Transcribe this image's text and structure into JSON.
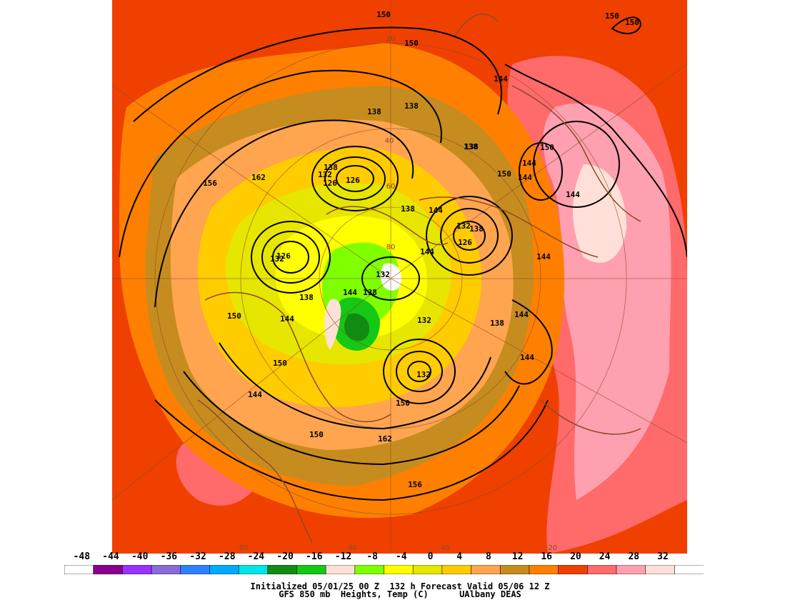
{
  "footer": {
    "line1": "Initialized 05/01/25 00 Z  132 h Forecast Valid 05/06 12 Z",
    "line2": "GFS 850 mb  Heights, Temp (C)      UAlbany DEAS"
  },
  "colorbar": {
    "tick_labels": [
      "-48",
      "-44",
      "-40",
      "-36",
      "-32",
      "-28",
      "-24",
      "-20",
      "-16",
      "-12",
      "-8",
      "-4",
      "0",
      "4",
      "8",
      "12",
      "16",
      "20",
      "24",
      "28",
      "32"
    ],
    "colors": [
      "#ffffff",
      "#8b008b",
      "#9932ff",
      "#8a6bd8",
      "#2f80ff",
      "#00aaff",
      "#00e5e5",
      "#138b13",
      "#14c814",
      "#ffe0d6",
      "#80ff00",
      "#ffff00",
      "#e6e600",
      "#ffcc00",
      "#ffa54f",
      "#c78c1f",
      "#ff8000",
      "#f04000",
      "#ff6a6a",
      "#ffa0b0",
      "#ffe0d8",
      "#ffffff"
    ]
  },
  "map": {
    "background_color": "#f04000",
    "contour_color": "#000000",
    "coastline_color": "#8b4a2a",
    "height_labels": [
      "150",
      "150",
      "150",
      "150",
      "144",
      "138",
      "138",
      "138",
      "138",
      "132",
      "126",
      "126",
      "156",
      "162",
      "138",
      "144",
      "132",
      "138",
      "126",
      "132",
      "138",
      "144",
      "138",
      "138",
      "126",
      "144",
      "132",
      "144",
      "144",
      "150",
      "144",
      "150",
      "144",
      "144",
      "150",
      "144",
      "138",
      "132",
      "132",
      "144",
      "150",
      "144",
      "150",
      "162",
      "156",
      "150",
      "156"
    ],
    "graticule_labels": [
      "20",
      "40",
      "60",
      "80",
      "-80",
      "-60",
      "-40",
      "-20"
    ]
  }
}
